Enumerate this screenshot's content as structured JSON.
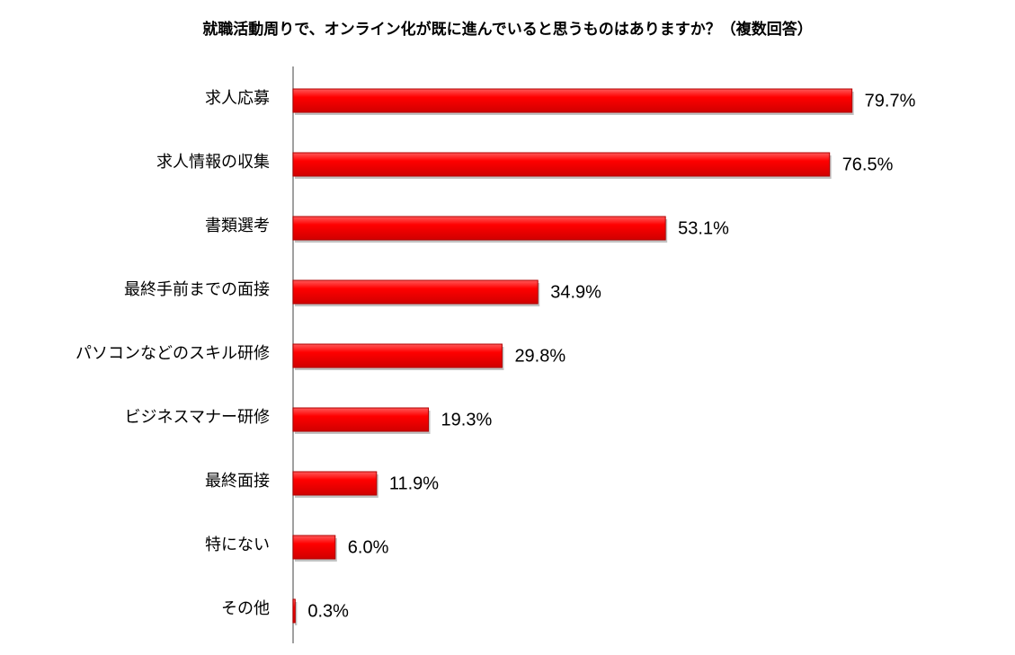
{
  "chart_data": {
    "type": "bar",
    "orientation": "horizontal",
    "title": "就職活動周りで、オンライン化が既に進んでいると思うものはありますか？（複数回答）",
    "categories": [
      "求人応募",
      "求人情報の収集",
      "書類選考",
      "最終手前までの面接",
      "パソコンなどのスキル研修",
      "ビジネスマナー研修",
      "最終面接",
      "特にない",
      "その他"
    ],
    "values": [
      79.7,
      76.5,
      53.1,
      34.9,
      29.8,
      19.3,
      11.9,
      6.0,
      0.3
    ],
    "value_labels": [
      "79.7%",
      "76.5%",
      "53.1%",
      "34.9%",
      "29.8%",
      "19.3%",
      "11.9%",
      "6.0%",
      "0.3%"
    ],
    "xlim": [
      0,
      100
    ],
    "grid": false,
    "legend": "none",
    "bar_color": "#ff0000"
  }
}
